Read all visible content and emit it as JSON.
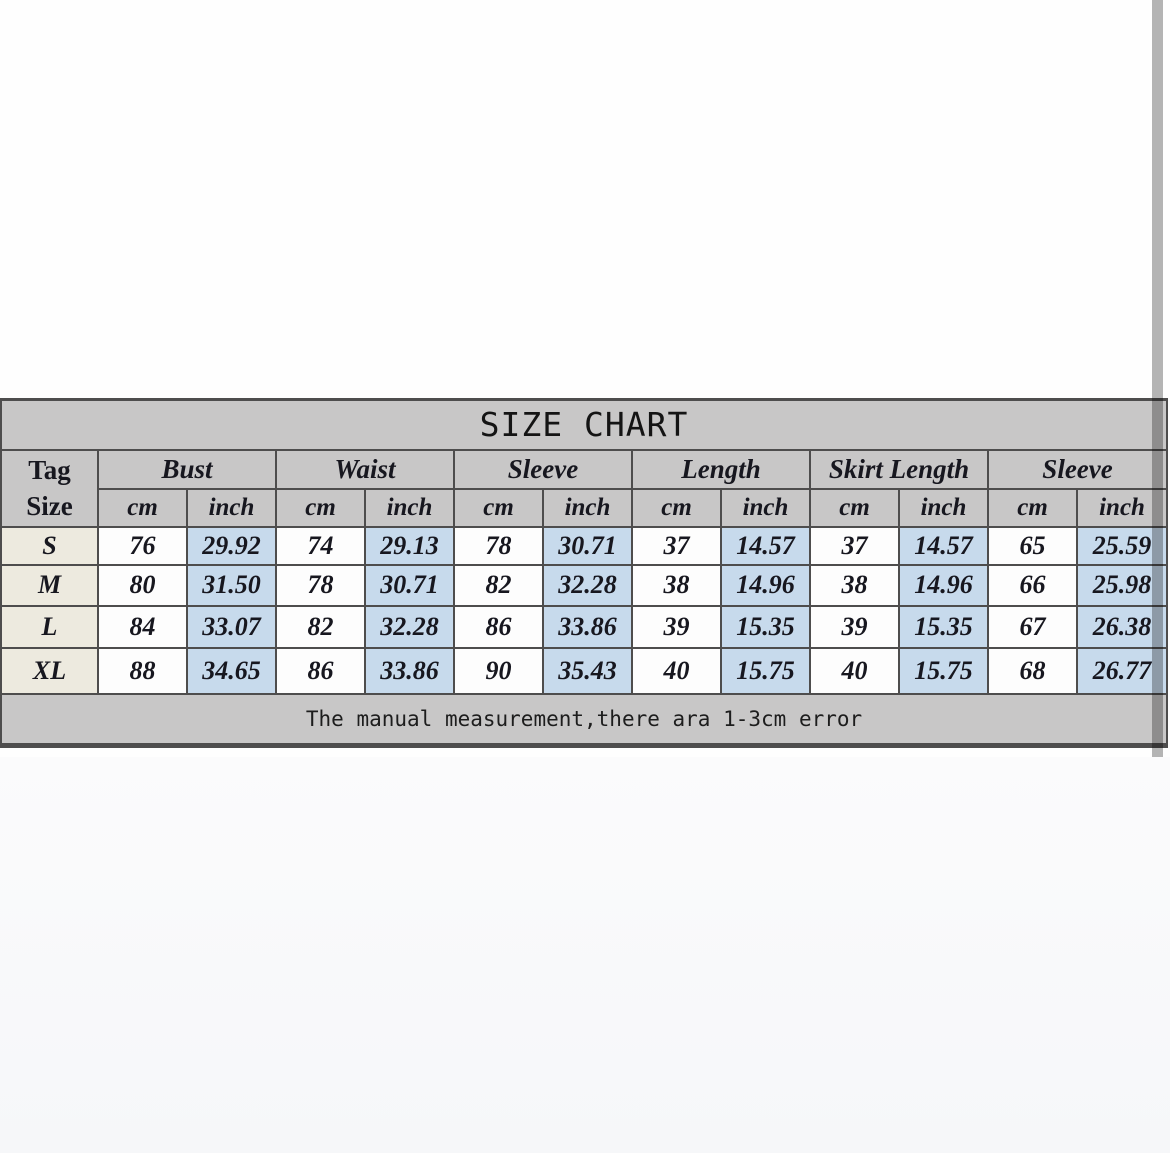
{
  "size_chart": {
    "title": "SIZE CHART",
    "tag_header": {
      "line1": "Tag",
      "line2": "Size"
    },
    "groups": [
      {
        "label": "Bust"
      },
      {
        "label": "Waist"
      },
      {
        "label": "Sleeve"
      },
      {
        "label": "Length"
      },
      {
        "label": "Skirt Length"
      },
      {
        "label": "Sleeve"
      }
    ],
    "unit_cm": "cm",
    "unit_inch": "inch",
    "rows": [
      {
        "tag": "S",
        "values": [
          "76",
          "29.92",
          "74",
          "29.13",
          "78",
          "30.71",
          "37",
          "14.57",
          "37",
          "14.57",
          "65",
          "25.59"
        ]
      },
      {
        "tag": "M",
        "values": [
          "80",
          "31.50",
          "78",
          "30.71",
          "82",
          "32.28",
          "38",
          "14.96",
          "38",
          "14.96",
          "66",
          "25.98"
        ]
      },
      {
        "tag": "L",
        "values": [
          "84",
          "33.07",
          "82",
          "32.28",
          "86",
          "33.86",
          "39",
          "15.35",
          "39",
          "15.35",
          "67",
          "26.38"
        ]
      },
      {
        "tag": "XL",
        "values": [
          "88",
          "34.65",
          "86",
          "33.86",
          "90",
          "35.43",
          "40",
          "15.75",
          "40",
          "15.75",
          "68",
          "26.77"
        ]
      }
    ],
    "footnote": "The manual measurement,there ara 1-3cm error",
    "colors": {
      "header_bg": "#c8c7c7",
      "inch_cell_bg": "#c7daec",
      "cm_cell_bg": "#fdfdfd",
      "tag_cell_bg": "#edeadf",
      "border": "#4e4d4d",
      "scrollbar": "#b5b5b5"
    }
  }
}
